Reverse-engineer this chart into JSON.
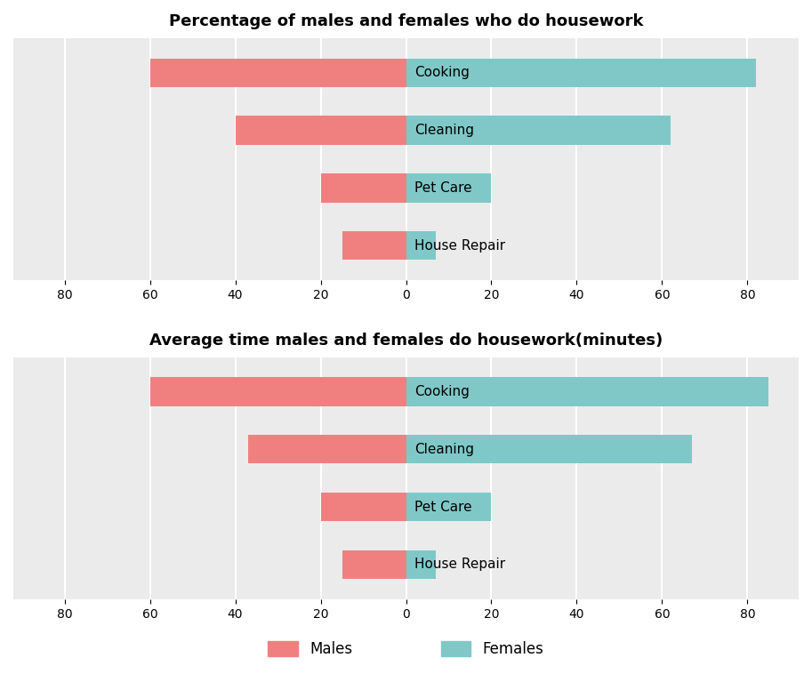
{
  "chart1_title": "Percentage of males and females who do housework",
  "chart2_title": "Average time males and females do housework(minutes)",
  "categories": [
    "Cooking",
    "Cleaning",
    "Pet Care",
    "House Repair"
  ],
  "chart1_males": [
    60,
    40,
    20,
    15
  ],
  "chart1_females": [
    82,
    62,
    20,
    7
  ],
  "chart2_males": [
    60,
    37,
    20,
    15
  ],
  "chart2_females": [
    85,
    67,
    20,
    7
  ],
  "male_color": "#F08080",
  "female_color": "#80C8C8",
  "background_color": "#ebebeb",
  "title_fontsize": 13,
  "legend_fontsize": 12,
  "tick_fontsize": 10,
  "label_fontsize": 11,
  "bar_height": 0.5
}
